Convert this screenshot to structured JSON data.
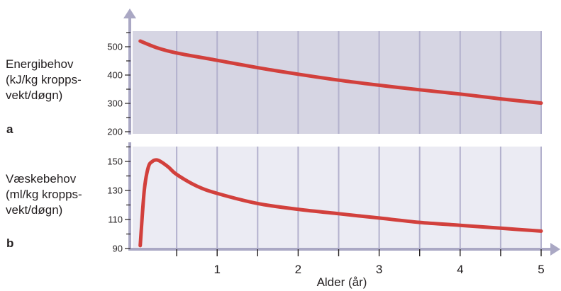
{
  "panel_a": {
    "ylabel_lines": [
      "Energibehov",
      "(kJ/kg kropps-",
      "vekt/døgn)"
    ],
    "letter": "a"
  },
  "panel_b": {
    "ylabel_lines": [
      "Væskebehov",
      "(ml/kg kropps-",
      "vekt/døgn)"
    ],
    "letter": "b"
  },
  "colors": {
    "panel_a_bg": "#d6d5e3",
    "panel_b_bg": "#ebebf3",
    "gridline": "#b3b1cd",
    "axis": "#aaa8c4",
    "curve": "#d2403c"
  },
  "chart_data": [
    {
      "type": "line",
      "xlabel": "Alder (år)",
      "xlim": [
        0,
        5
      ],
      "xticks": [
        1,
        2,
        3,
        4,
        5
      ],
      "ylim": [
        200,
        550
      ],
      "yticks": [
        200,
        300,
        400,
        500
      ],
      "series": [
        {
          "x": [
            0.05,
            0.25,
            0.5,
            1,
            1.5,
            2,
            2.5,
            3,
            3.5,
            4,
            4.5,
            5
          ],
          "values": [
            520,
            497,
            478,
            452,
            426,
            403,
            382,
            364,
            348,
            333,
            316,
            301
          ]
        }
      ]
    },
    {
      "type": "line",
      "xlabel": "Alder (år)",
      "xlim": [
        0,
        5
      ],
      "xticks": [
        1,
        2,
        3,
        4,
        5
      ],
      "ylim": [
        90,
        160
      ],
      "yticks": [
        90,
        110,
        130,
        150
      ],
      "series": [
        {
          "x": [
            0.05,
            0.1,
            0.15,
            0.2,
            0.25,
            0.3,
            0.4,
            0.5,
            0.75,
            1,
            1.5,
            2,
            2.5,
            3,
            3.5,
            4,
            4.5,
            5
          ],
          "values": [
            92,
            130,
            146,
            150,
            151,
            150,
            146,
            141,
            133,
            128,
            121,
            117,
            114,
            111,
            108,
            106,
            104,
            102
          ]
        }
      ]
    }
  ]
}
